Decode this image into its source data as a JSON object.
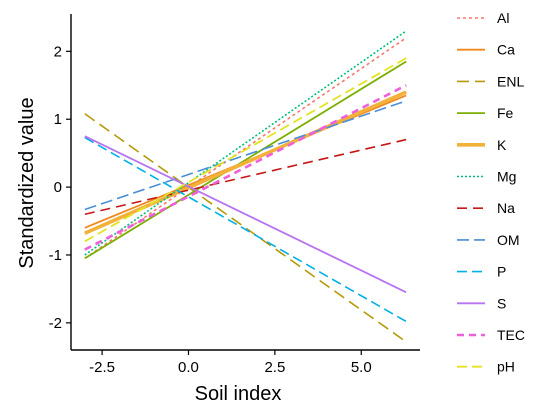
{
  "chart_data": {
    "type": "line",
    "title": "",
    "xlabel": "Soil index",
    "ylabel": "Standardized value",
    "xlim": [
      -3.4,
      6.7
    ],
    "ylim": [
      -2.4,
      2.55
    ],
    "x_ticks": [
      -2.5,
      0.0,
      2.5,
      5.0
    ],
    "x_tick_labels": [
      "-2.5",
      "0.0",
      "2.5",
      "5.0"
    ],
    "y_ticks": [
      -2,
      -1,
      0,
      1,
      2
    ],
    "y_tick_labels": [
      "-2",
      "-1",
      "0",
      "1",
      "2"
    ],
    "grid": false,
    "legend_position": "right",
    "x_range": [
      -3.0,
      6.3
    ],
    "series": [
      {
        "name": "Al",
        "color": "#F8766D",
        "dash": "3,3",
        "width": 1.6,
        "y_start": -1.05,
        "y_end": 2.2
      },
      {
        "name": "Ca",
        "color": "#F0881E",
        "dash": "",
        "width": 1.8,
        "y_start": -0.6,
        "y_end": 1.35
      },
      {
        "name": "ENL",
        "color": "#B79A0A",
        "dash": "12,6",
        "width": 1.6,
        "y_start": 1.08,
        "y_end": -2.28
      },
      {
        "name": "Fe",
        "color": "#7CAE00",
        "dash": "",
        "width": 1.8,
        "y_start": -1.05,
        "y_end": 1.85
      },
      {
        "name": "K",
        "color": "#F2B23A",
        "dash": "",
        "width": 3.6,
        "y_start": -0.68,
        "y_end": 1.4
      },
      {
        "name": "Mg",
        "color": "#00BF7D",
        "dash": "2,2",
        "width": 1.6,
        "y_start": -1.0,
        "y_end": 2.3
      },
      {
        "name": "Na",
        "color": "#C71616",
        "dash": "10,6",
        "width": 1.6,
        "y_start": -0.4,
        "y_end": 0.7
      },
      {
        "name": "OM",
        "color": "#4A8FD6",
        "dash": "12,5",
        "width": 1.6,
        "y_start": -0.33,
        "y_end": 1.27
      },
      {
        "name": "P",
        "color": "#00B0E6",
        "dash": "10,5",
        "width": 1.6,
        "y_start": 0.73,
        "y_end": -1.98
      },
      {
        "name": "S",
        "color": "#B873F0",
        "dash": "",
        "width": 1.8,
        "y_start": 0.75,
        "y_end": -1.55
      },
      {
        "name": "TEC",
        "color": "#EE5FDA",
        "dash": "7,5",
        "width": 2.6,
        "y_start": -0.92,
        "y_end": 1.5
      },
      {
        "name": "pH",
        "color": "#E3E322",
        "dash": "10,5",
        "width": 1.8,
        "y_start": -0.8,
        "y_end": 1.9
      }
    ]
  }
}
